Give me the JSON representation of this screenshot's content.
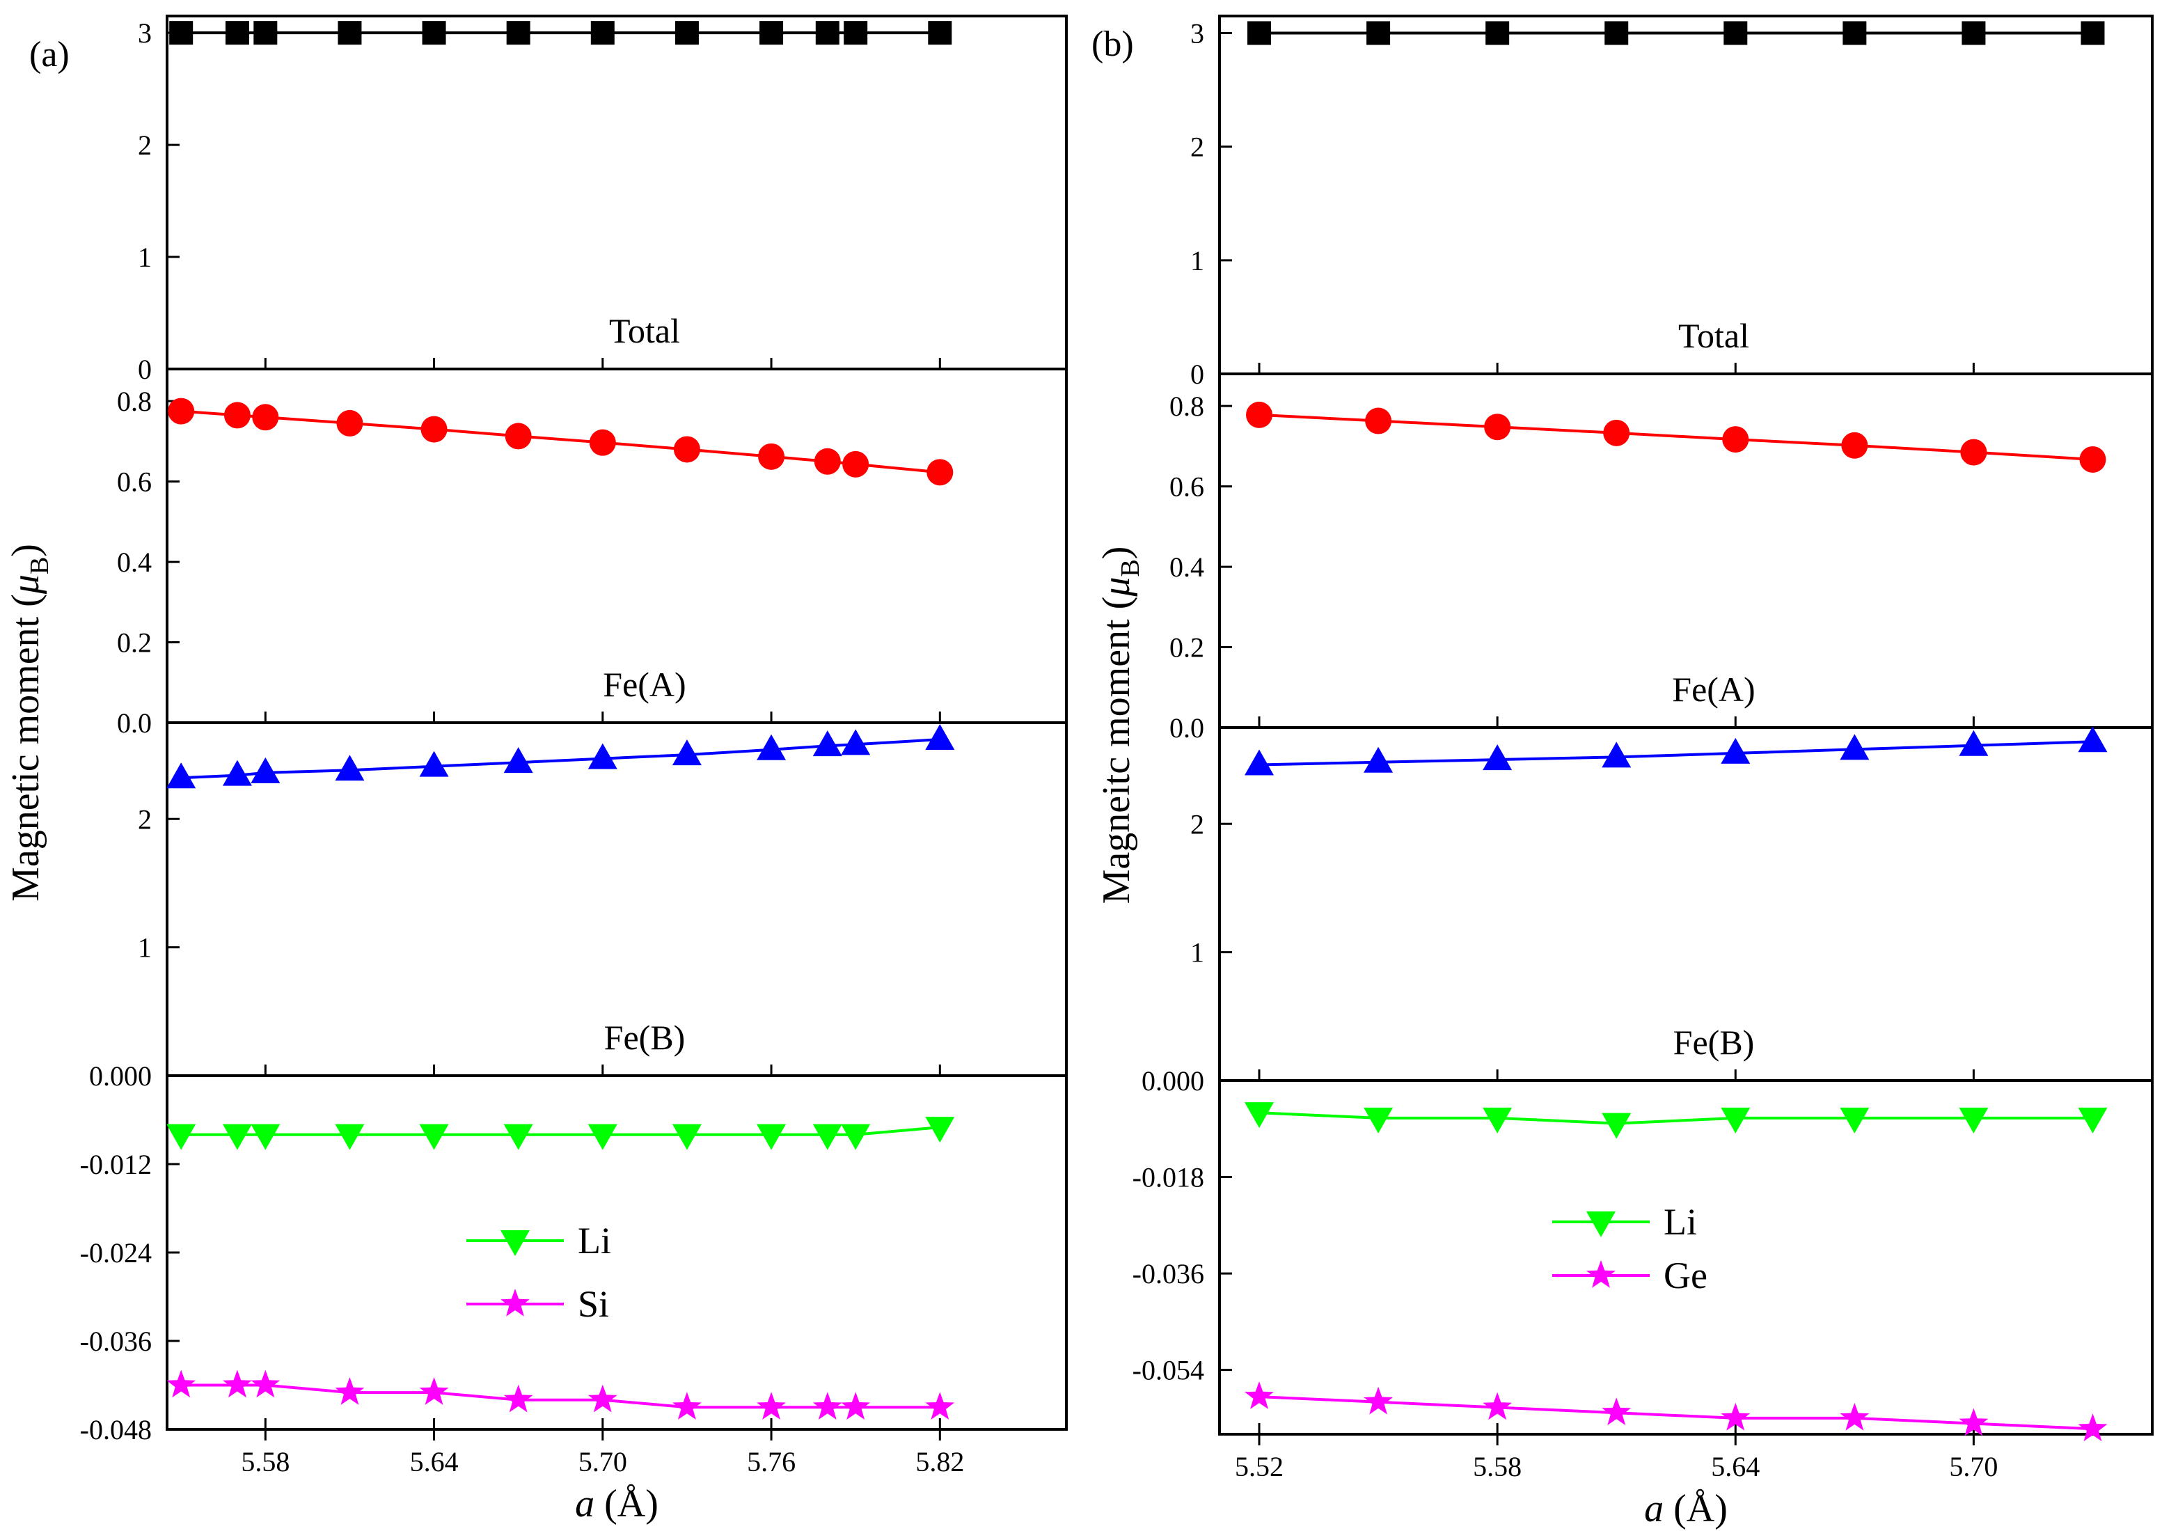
{
  "chart_data": [
    {
      "type": "line",
      "panel_letter": "(a)",
      "xlabel_var": "a",
      "xlabel_unit": " (Å)",
      "ylabel_main": "Magnetic moment (",
      "ylabel_mu": "μ",
      "ylabel_sub": "B",
      "ylabel_end": ")",
      "xlim": [
        5.545,
        5.865
      ],
      "xticks": [
        {
          "v": 5.58,
          "label": "5.58"
        },
        {
          "v": 5.64,
          "label": "5.64"
        },
        {
          "v": 5.7,
          "label": "5.70"
        },
        {
          "v": 5.76,
          "label": "5.76"
        },
        {
          "v": 5.82,
          "label": "5.82"
        }
      ],
      "x": [
        5.55,
        5.57,
        5.58,
        5.61,
        5.64,
        5.67,
        5.7,
        5.73,
        5.76,
        5.78,
        5.79,
        5.82
      ],
      "subplots": [
        {
          "label": "Total",
          "ylim": [
            0,
            3.15
          ],
          "yticks": [
            {
              "v": 0,
              "label": "0"
            },
            {
              "v": 1,
              "label": "1"
            },
            {
              "v": 2,
              "label": "2"
            },
            {
              "v": 3,
              "label": "3"
            }
          ],
          "series": [
            {
              "color": "#000000",
              "marker": "square",
              "values": [
                3,
                3,
                3,
                3,
                3,
                3,
                3,
                3,
                3,
                3,
                3,
                3
              ]
            }
          ]
        },
        {
          "label": "Fe(A)",
          "ylim": [
            0,
            0.88
          ],
          "yticks": [
            {
              "v": 0,
              "label": "0.0"
            },
            {
              "v": 0.2,
              "label": "0.2"
            },
            {
              "v": 0.4,
              "label": "0.4"
            },
            {
              "v": 0.6,
              "label": "0.6"
            },
            {
              "v": 0.8,
              "label": "0.8"
            }
          ],
          "series": [
            {
              "color": "#ff0000",
              "marker": "circle",
              "values": [
                0.775,
                0.765,
                0.76,
                0.745,
                0.73,
                0.713,
                0.697,
                0.68,
                0.662,
                0.65,
                0.643,
                0.623
              ]
            }
          ]
        },
        {
          "label": "Fe(B)",
          "ylim": [
            0,
            2.75
          ],
          "yticks": [
            {
              "v": 1,
              "label": "1"
            },
            {
              "v": 2,
              "label": "2"
            }
          ],
          "series": [
            {
              "color": "#0000ff",
              "marker": "triangle-up",
              "values": [
                2.32,
                2.34,
                2.36,
                2.38,
                2.41,
                2.44,
                2.47,
                2.5,
                2.54,
                2.57,
                2.58,
                2.62
              ]
            }
          ]
        },
        {
          "label": "",
          "ylim": [
            -0.048,
            0.0
          ],
          "yticks": [
            {
              "v": 0.0,
              "label": "0.000"
            },
            {
              "v": -0.012,
              "label": "-0.012"
            },
            {
              "v": -0.024,
              "label": "-0.024"
            },
            {
              "v": -0.036,
              "label": "-0.036"
            },
            {
              "v": -0.048,
              "label": "-0.048"
            }
          ],
          "legend": true,
          "legend_placement": "center",
          "series": [
            {
              "name": "Li",
              "color": "#00ff00",
              "marker": "triangle-down",
              "values": [
                -0.008,
                -0.008,
                -0.008,
                -0.008,
                -0.008,
                -0.008,
                -0.008,
                -0.008,
                -0.008,
                -0.008,
                -0.008,
                -0.007
              ]
            },
            {
              "name": "Si",
              "color": "#ff00ff",
              "marker": "star",
              "values": [
                -0.042,
                -0.042,
                -0.042,
                -0.043,
                -0.043,
                -0.044,
                -0.044,
                -0.045,
                -0.045,
                -0.045,
                -0.045,
                -0.045
              ]
            }
          ]
        }
      ]
    },
    {
      "type": "line",
      "panel_letter": "(b)",
      "xlabel_var": "a",
      "xlabel_unit": " (Å)",
      "ylabel_main": "Magneitc moment (",
      "ylabel_mu": "μ",
      "ylabel_sub": "B",
      "ylabel_end": ")",
      "xlim": [
        5.51,
        5.745
      ],
      "xticks": [
        {
          "v": 5.52,
          "label": "5.52"
        },
        {
          "v": 5.58,
          "label": "5.58"
        },
        {
          "v": 5.64,
          "label": "5.64"
        },
        {
          "v": 5.7,
          "label": "5.70"
        }
      ],
      "x": [
        5.52,
        5.55,
        5.58,
        5.61,
        5.64,
        5.67,
        5.7,
        5.73
      ],
      "subplots": [
        {
          "label": "Total",
          "ylim": [
            0,
            3.15
          ],
          "yticks": [
            {
              "v": 0,
              "label": "0"
            },
            {
              "v": 1,
              "label": "1"
            },
            {
              "v": 2,
              "label": "2"
            },
            {
              "v": 3,
              "label": "3"
            }
          ],
          "series": [
            {
              "color": "#000000",
              "marker": "square",
              "values": [
                3,
                3,
                3,
                3,
                3,
                3,
                3,
                3
              ]
            }
          ]
        },
        {
          "label": "Fe(A)",
          "ylim": [
            0,
            0.88
          ],
          "yticks": [
            {
              "v": 0,
              "label": "0.0"
            },
            {
              "v": 0.2,
              "label": "0.2"
            },
            {
              "v": 0.4,
              "label": "0.4"
            },
            {
              "v": 0.6,
              "label": "0.6"
            },
            {
              "v": 0.8,
              "label": "0.8"
            }
          ],
          "series": [
            {
              "color": "#ff0000",
              "marker": "circle",
              "values": [
                0.778,
                0.763,
                0.748,
                0.733,
                0.717,
                0.702,
                0.685,
                0.667
              ]
            }
          ]
        },
        {
          "label": "Fe(B)",
          "ylim": [
            0,
            2.75
          ],
          "yticks": [
            {
              "v": 1,
              "label": "1"
            },
            {
              "v": 2,
              "label": "2"
            }
          ],
          "series": [
            {
              "color": "#0000ff",
              "marker": "triangle-up",
              "values": [
                2.46,
                2.48,
                2.5,
                2.52,
                2.55,
                2.58,
                2.61,
                2.64
              ]
            }
          ]
        },
        {
          "label": "",
          "ylim": [
            -0.066,
            0.0
          ],
          "yticks": [
            {
              "v": 0.0,
              "label": "0.000"
            },
            {
              "v": -0.018,
              "label": "-0.018"
            },
            {
              "v": -0.036,
              "label": "-0.036"
            },
            {
              "v": -0.054,
              "label": "-0.054"
            }
          ],
          "legend": true,
          "legend_placement": "center",
          "series": [
            {
              "name": "Li",
              "color": "#00ff00",
              "marker": "triangle-down",
              "values": [
                -0.006,
                -0.007,
                -0.007,
                -0.008,
                -0.007,
                -0.007,
                -0.007,
                -0.007
              ]
            },
            {
              "name": "Ge",
              "color": "#ff00ff",
              "marker": "star",
              "values": [
                -0.059,
                -0.06,
                -0.061,
                -0.062,
                -0.063,
                -0.063,
                -0.064,
                -0.065
              ]
            }
          ]
        }
      ]
    }
  ]
}
